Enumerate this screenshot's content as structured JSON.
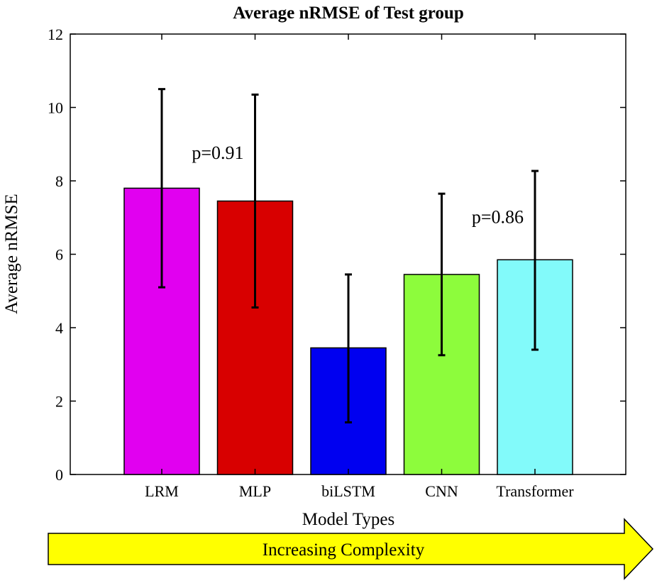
{
  "chart_data": {
    "type": "bar",
    "title": "Average nRMSE of Test group",
    "xlabel": "Model Types",
    "ylabel": "Average nRMSE",
    "ylim": [
      0,
      12
    ],
    "yticks": [
      0,
      2,
      4,
      6,
      8,
      10,
      12
    ],
    "categories": [
      "LRM",
      "MLP",
      "biLSTM",
      "CNN",
      "Transformer"
    ],
    "values": [
      7.8,
      7.45,
      3.45,
      5.45,
      5.85
    ],
    "error_low": [
      5.1,
      4.55,
      1.42,
      3.25,
      3.4
    ],
    "error_high": [
      10.5,
      10.35,
      5.45,
      7.65,
      8.27
    ],
    "colors": [
      "#e100f0",
      "#d80000",
      "#0000f0",
      "#8dfc3c",
      "#82fafa"
    ],
    "grid": false,
    "annotations": [
      {
        "text": "p=0.91",
        "x": 0.6,
        "y": 8.6
      },
      {
        "text": "p=0.86",
        "x": 3.6,
        "y": 6.85
      }
    ]
  },
  "arrow": {
    "label": "Increasing Complexity",
    "color": "#ffff00"
  }
}
